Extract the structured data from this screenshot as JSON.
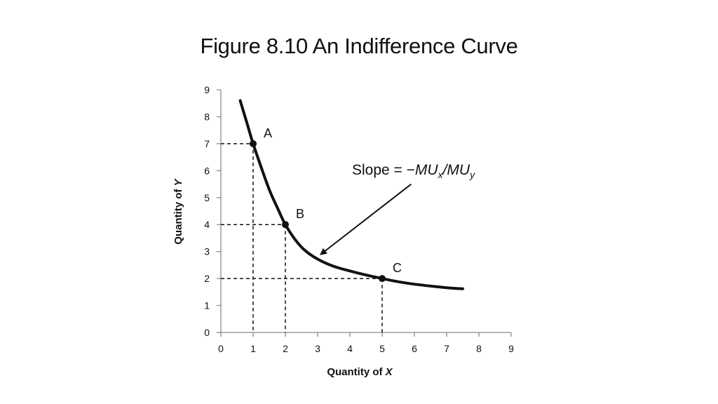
{
  "slide": {
    "title": "Figure 8.10 An Indifference Curve"
  },
  "chart_data": {
    "type": "line",
    "title": "",
    "xlabel_prefix": "Quantity of ",
    "xlabel_var": "X",
    "ylabel_prefix": "Quantity of ",
    "ylabel_var": "Y",
    "xlim": [
      0,
      9
    ],
    "ylim": [
      0,
      9
    ],
    "x_ticks": [
      0,
      1,
      2,
      3,
      4,
      5,
      6,
      7,
      8,
      9
    ],
    "y_ticks": [
      0,
      1,
      2,
      3,
      4,
      5,
      6,
      7,
      8,
      9
    ],
    "grid": false,
    "curve": {
      "x": [
        0.6,
        0.8,
        1.0,
        1.2,
        1.5,
        1.8,
        2.0,
        2.3,
        2.6,
        3.0,
        3.5,
        4.0,
        4.5,
        5.0,
        5.5,
        6.0,
        6.5,
        7.0,
        7.5
      ],
      "y": [
        8.6,
        7.8,
        7.0,
        6.3,
        5.3,
        4.5,
        4.0,
        3.45,
        3.05,
        2.72,
        2.45,
        2.28,
        2.13,
        2.0,
        1.88,
        1.79,
        1.72,
        1.66,
        1.62
      ]
    },
    "points": [
      {
        "label": "A",
        "x": 1,
        "y": 7
      },
      {
        "label": "B",
        "x": 2,
        "y": 4
      },
      {
        "label": "C",
        "x": 5,
        "y": 2
      }
    ],
    "annotation": {
      "prefix": "Slope = −",
      "mu1": "MU",
      "sub1": "x",
      "slash": "/",
      "mu2": "MU",
      "sub2": "y",
      "arrow_from": {
        "x": 5.9,
        "y": 5.5
      },
      "arrow_to": {
        "x": 3.1,
        "y": 2.9
      }
    }
  }
}
